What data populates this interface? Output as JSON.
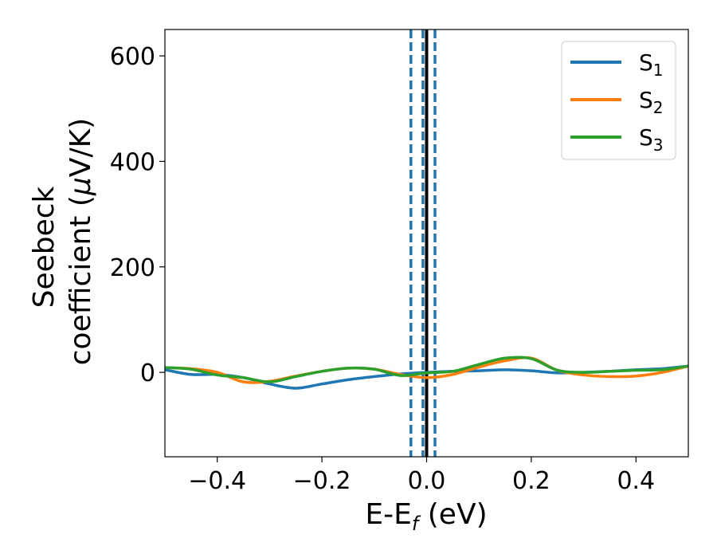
{
  "chart_data": {
    "type": "line",
    "xlabel": "E-E",
    "xlabel_sub": "f",
    "xlabel_unit": " (eV)",
    "ylabel_line1": "Seebeck",
    "ylabel_line2": "coefficient  (",
    "ylabel_mu": "μ",
    "ylabel_unit": "V/K)",
    "xlim": [
      -0.5,
      0.5
    ],
    "ylim": [
      -160,
      650
    ],
    "xticks": [
      -0.4,
      -0.2,
      0.0,
      0.2,
      0.4
    ],
    "xtick_labels": [
      "−0.4",
      "−0.2",
      "0.0",
      "0.2",
      "0.4"
    ],
    "yticks": [
      0,
      200,
      400,
      600
    ],
    "ytick_labels": [
      "0",
      "200",
      "400",
      "600"
    ],
    "grid": false,
    "legend_position": "top-right",
    "series": [
      {
        "name": "S",
        "subscript": "1",
        "color": "#1f77b4",
        "x": [
          -0.5,
          -0.45,
          -0.4,
          -0.35,
          -0.3,
          -0.25,
          -0.2,
          -0.15,
          -0.1,
          -0.05,
          0.0,
          0.05,
          0.1,
          0.15,
          0.2,
          0.25,
          0.3,
          0.35,
          0.4,
          0.45,
          0.5
        ],
        "y": [
          5,
          -4,
          -4,
          -10,
          -22,
          -30,
          -22,
          -14,
          -8,
          -3,
          0,
          2,
          3,
          5,
          3,
          -1,
          0,
          2,
          5,
          7,
          12
        ]
      },
      {
        "name": "S",
        "subscript": "2",
        "color": "#ff7f0e",
        "x": [
          -0.5,
          -0.45,
          -0.4,
          -0.35,
          -0.3,
          -0.25,
          -0.2,
          -0.15,
          -0.1,
          -0.05,
          0.0,
          0.05,
          0.1,
          0.15,
          0.2,
          0.25,
          0.3,
          0.35,
          0.4,
          0.45,
          0.5
        ],
        "y": [
          9,
          7,
          0,
          -18,
          -17,
          -7,
          2,
          8,
          6,
          -4,
          -10,
          -4,
          10,
          22,
          27,
          4,
          -5,
          -8,
          -7,
          0,
          12
        ]
      },
      {
        "name": "S",
        "subscript": "3",
        "color": "#2ca02c",
        "x": [
          -0.5,
          -0.45,
          -0.4,
          -0.35,
          -0.3,
          -0.25,
          -0.2,
          -0.15,
          -0.1,
          -0.05,
          0.0,
          0.05,
          0.1,
          0.15,
          0.2,
          0.25,
          0.3,
          0.35,
          0.4,
          0.45,
          0.5
        ],
        "y": [
          9,
          6,
          -5,
          -10,
          -18,
          -8,
          2,
          8,
          6,
          -6,
          -1,
          2,
          15,
          27,
          26,
          4,
          0,
          2,
          4,
          5,
          12
        ]
      }
    ],
    "vlines": [
      {
        "x": -0.03,
        "style": "dashed",
        "color": "#1f77b4"
      },
      {
        "x": -0.007,
        "style": "dashed",
        "color": "#1f77b4"
      },
      {
        "x": 0.016,
        "style": "dashed",
        "color": "#1f77b4"
      },
      {
        "x": 0.0,
        "style": "solid",
        "color": "#000000"
      }
    ]
  }
}
